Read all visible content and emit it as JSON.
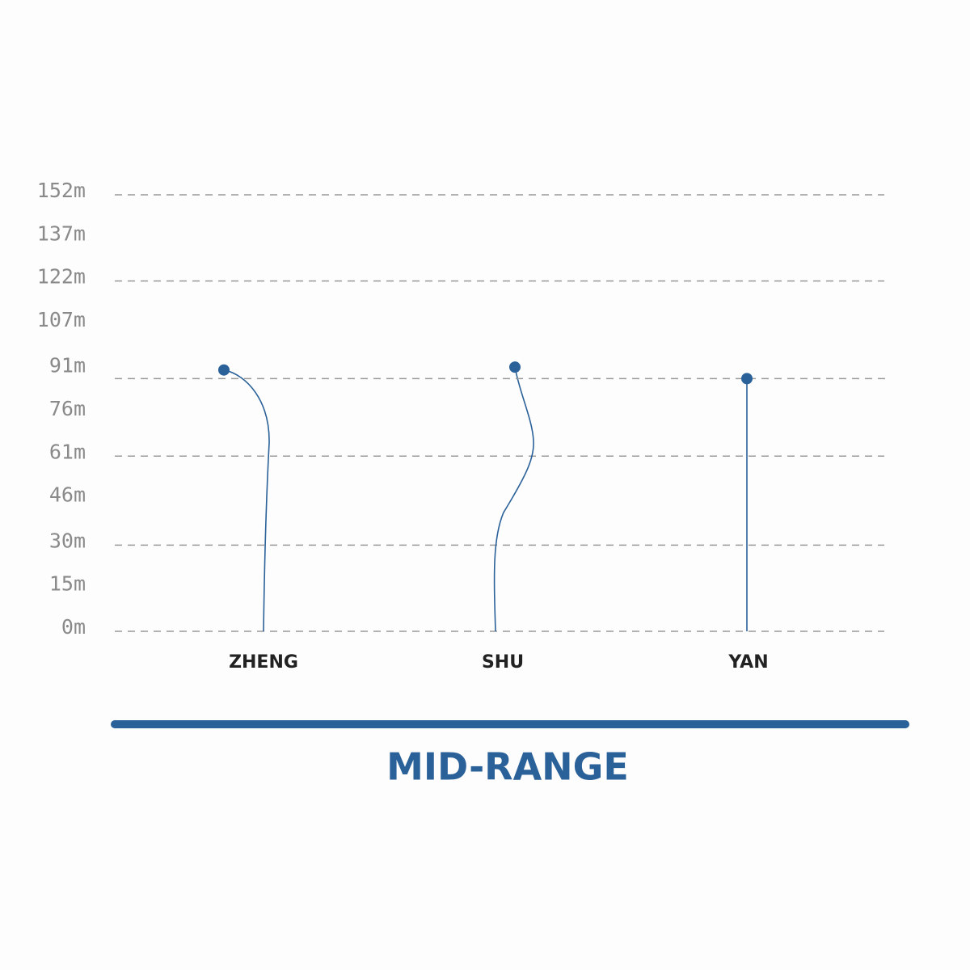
{
  "chart_data": {
    "type": "lollipop",
    "title": "MID-RANGE",
    "categories": [
      "ZHENG",
      "SHU",
      "YAN"
    ],
    "values": [
      91,
      92,
      88
    ],
    "color": "#2a6199",
    "ylim": [
      0,
      152
    ],
    "yticks": [
      {
        "value": 0,
        "label": "0m"
      },
      {
        "value": 15,
        "label": "15m"
      },
      {
        "value": 30,
        "label": "30m"
      },
      {
        "value": 46,
        "label": "46m"
      },
      {
        "value": 61,
        "label": "61m"
      },
      {
        "value": 76,
        "label": "76m"
      },
      {
        "value": 91,
        "label": "91m"
      },
      {
        "value": 107,
        "label": "107m"
      },
      {
        "value": 122,
        "label": "122m"
      },
      {
        "value": 137,
        "label": "137m"
      },
      {
        "value": 152,
        "label": "152m"
      }
    ],
    "gridlines": [
      0,
      30,
      61,
      122,
      152
    ]
  }
}
